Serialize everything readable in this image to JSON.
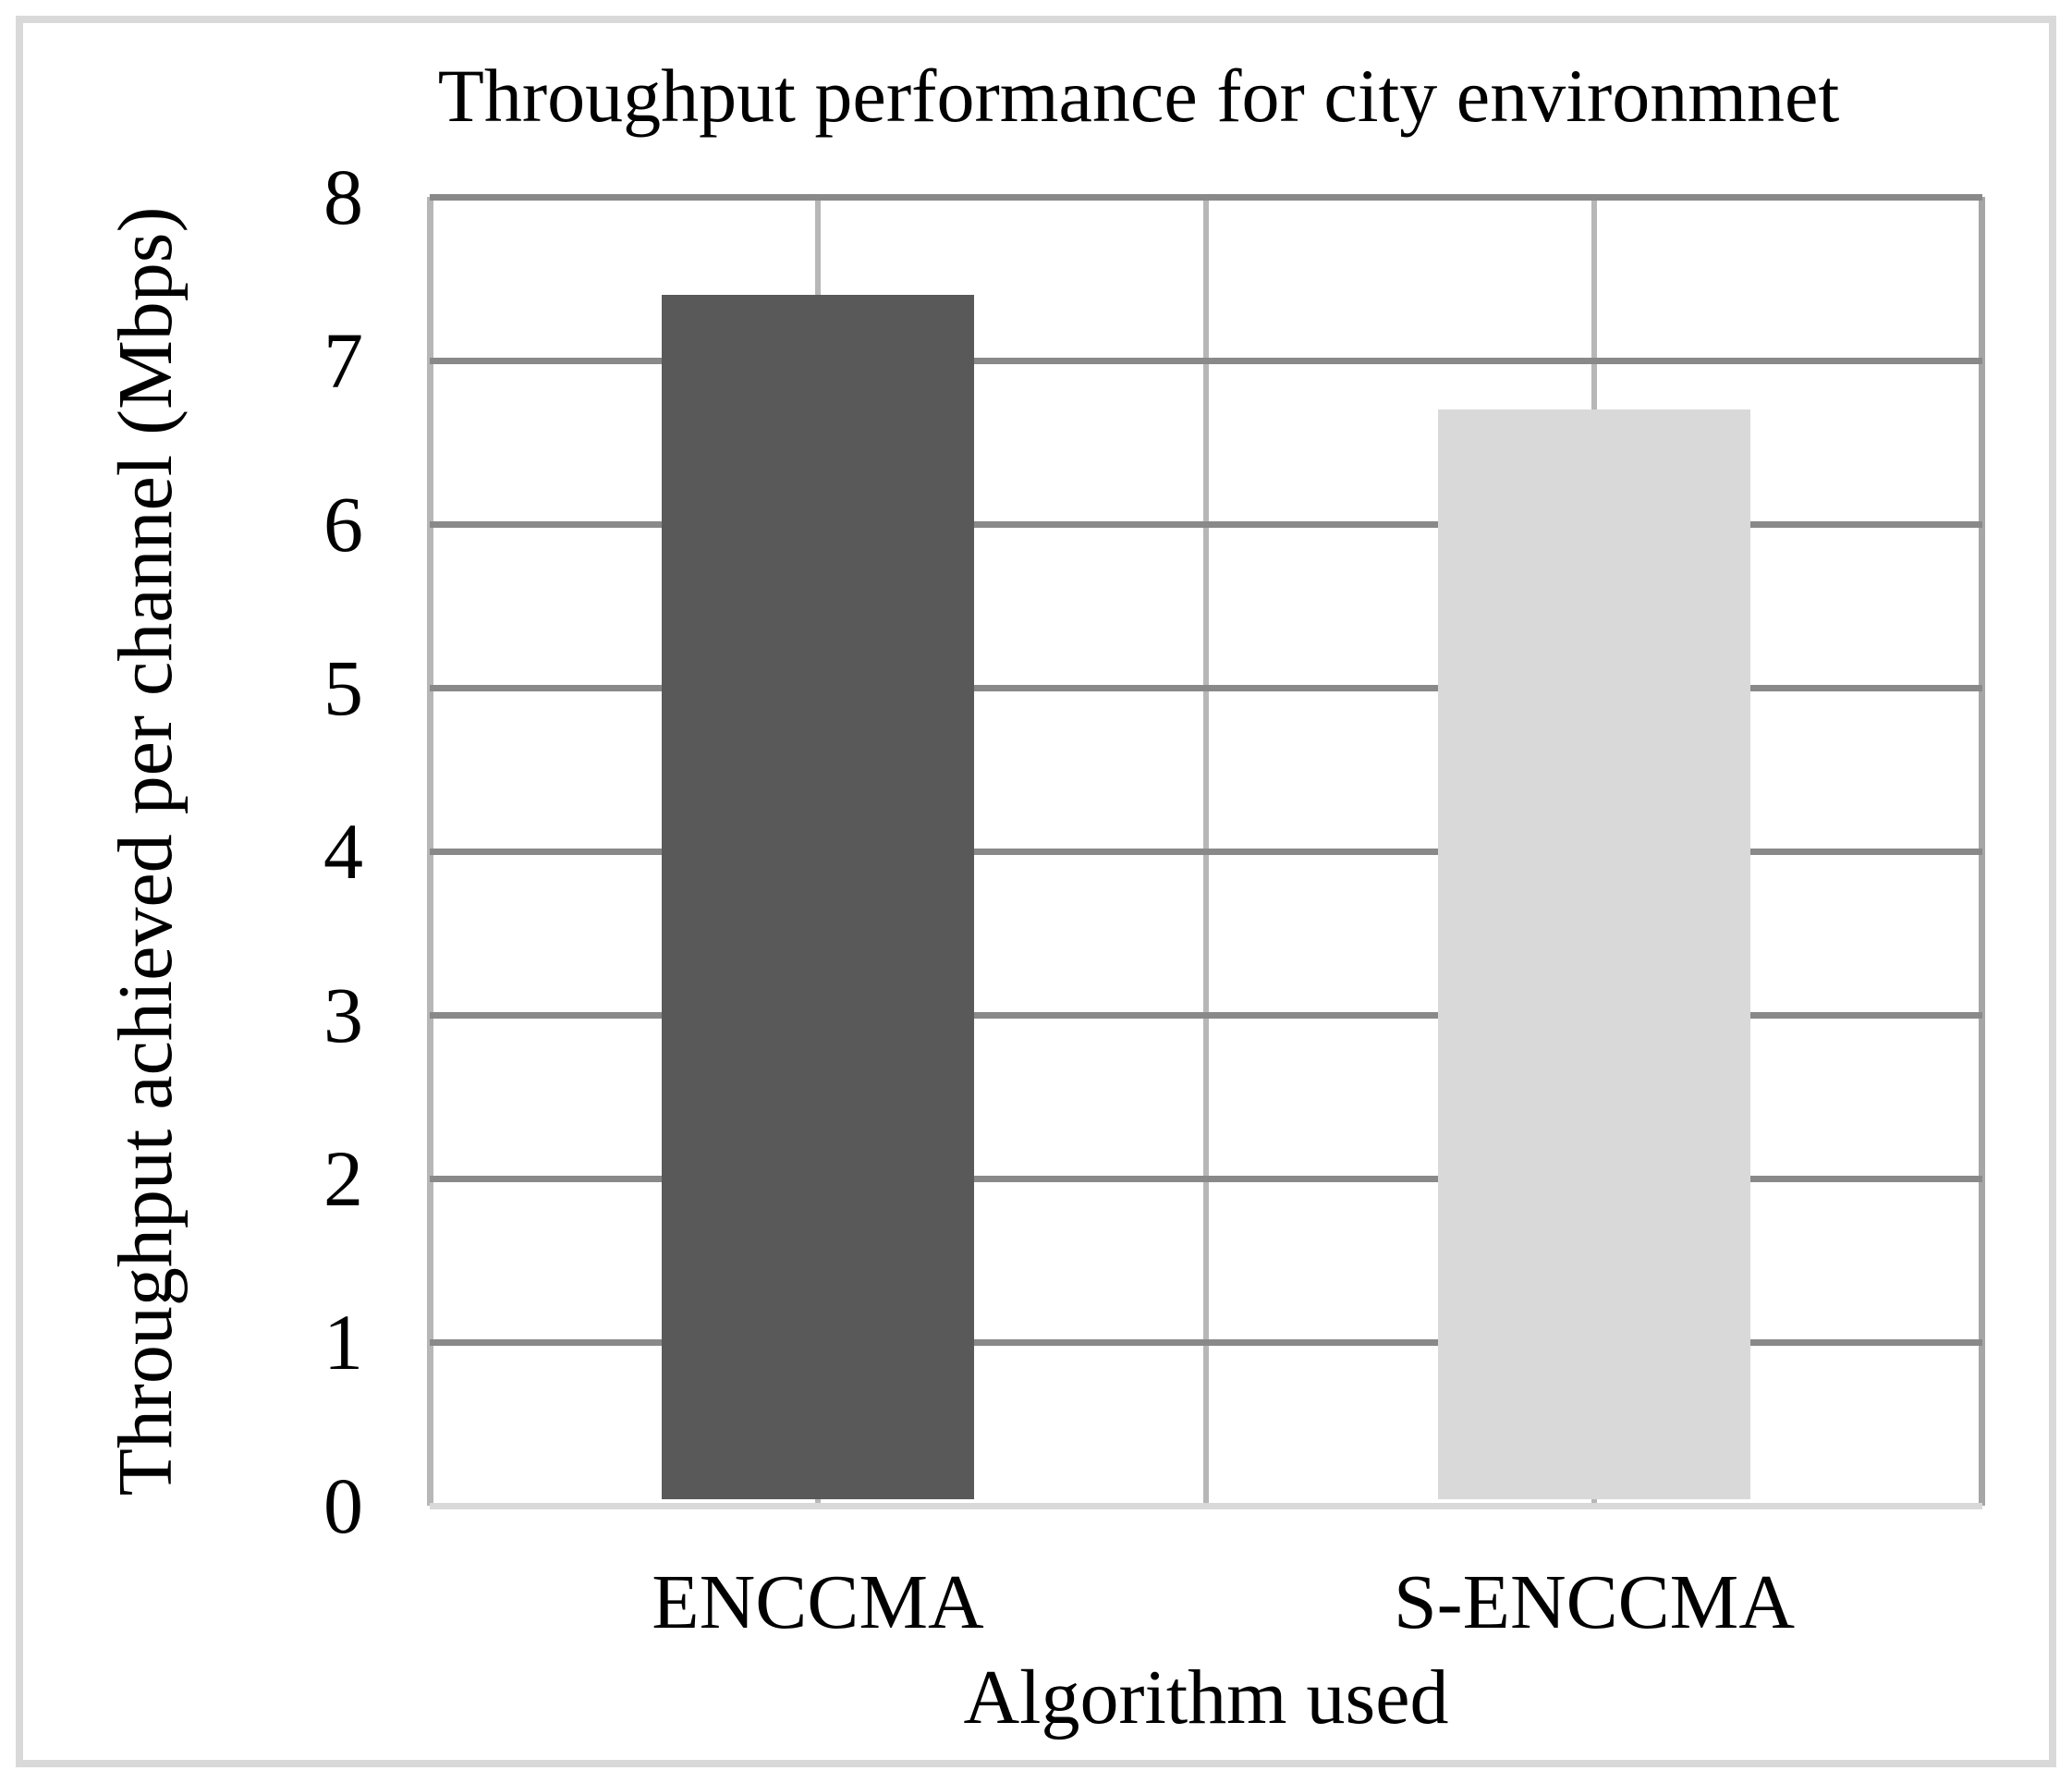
{
  "chart_data": {
    "type": "bar",
    "title": "Throughput performance for city environmnet",
    "categories": [
      "ENCCMA",
      "S-ENCCMA"
    ],
    "values": [
      7.4,
      6.7
    ],
    "xlabel": "Algorithm used",
    "ylabel": "Throughput achieved per channel (Mbps)",
    "ylim": [
      0,
      8
    ],
    "yticks": [
      0,
      1,
      2,
      3,
      4,
      5,
      6,
      7,
      8
    ],
    "bar_colors": [
      "#595959",
      "#d9d9d9"
    ],
    "legend": "none",
    "grid": "horizontal-major-and-vertical-half-category"
  },
  "colors": {
    "grid_horizontal": "#898989",
    "grid_vertical": "#b7b7b7",
    "axis_left": "#b7b7b7",
    "axis_baseline": "#d9d9d9",
    "plot_border_right": "#a6a6a6",
    "figure_frame": "#d9d9d9",
    "text": "#000000",
    "background": "#ffffff"
  }
}
